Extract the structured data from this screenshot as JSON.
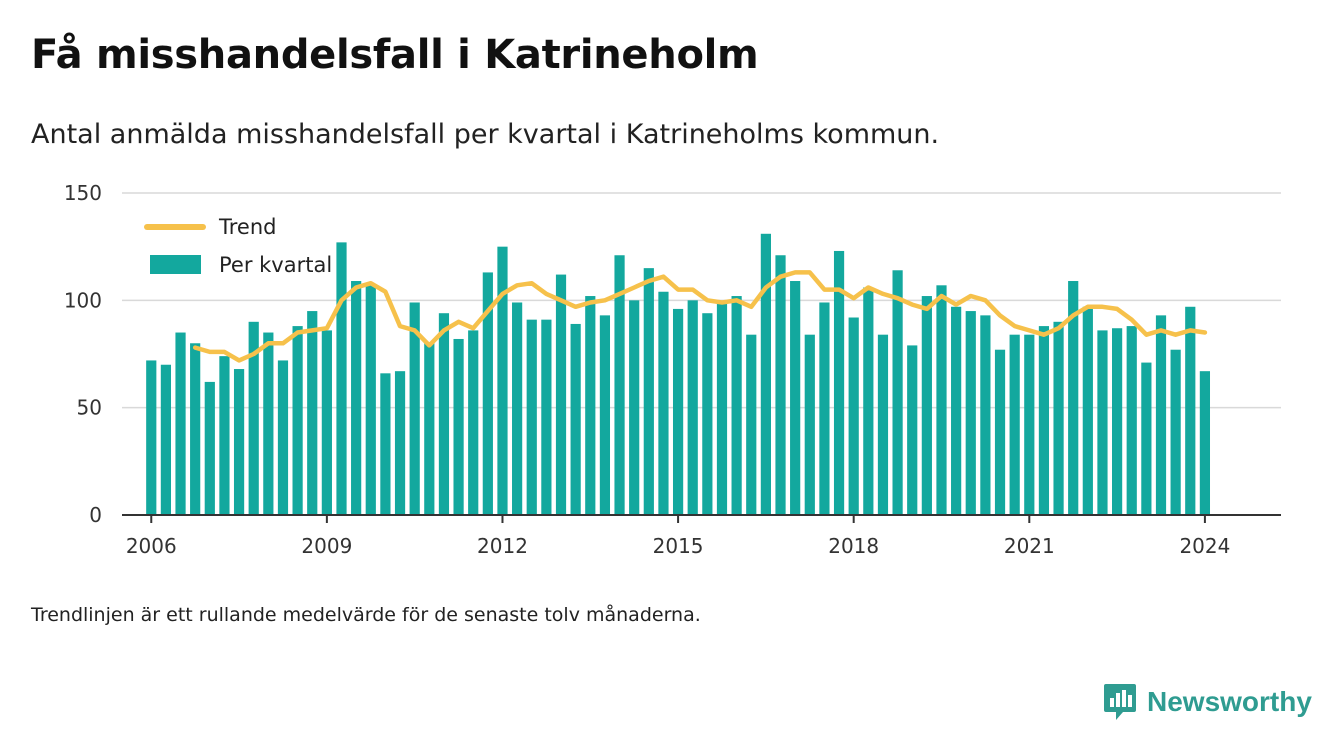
{
  "header": {
    "title": "Få misshandelsfall i Katrineholm",
    "subtitle": "Antal anmälda misshandelsfall per kvartal i Katrineholms kommun."
  },
  "footer": {
    "note": "Trendlinjen är ett rullande medelvärde för de senaste tolv månaderna.",
    "brand": "Newsworthy"
  },
  "colors": {
    "bar": "#13a89e",
    "trend": "#f6c14b",
    "grid": "#d9d9d9",
    "brand": "#2f9c91"
  },
  "chart_data": {
    "type": "bar",
    "title": "Få misshandelsfall i Katrineholm",
    "ylim": [
      0,
      150
    ],
    "yticks": [
      0,
      50,
      100,
      150
    ],
    "xlim": [
      2005.5,
      2025.3
    ],
    "xticks": [
      2006,
      2009,
      2012,
      2015,
      2018,
      2021,
      2024
    ],
    "xtick_labels": [
      "2006",
      "2009",
      "2012",
      "2015",
      "2018",
      "2021",
      "2024"
    ],
    "grid": true,
    "legend_position": "top-left",
    "series": [
      {
        "name": "Trend",
        "type": "line",
        "x": [
          2006.75,
          2007.0,
          2007.25,
          2007.5,
          2007.75,
          2008.0,
          2008.25,
          2008.5,
          2008.75,
          2009.0,
          2009.25,
          2009.5,
          2009.75,
          2010.0,
          2010.25,
          2010.5,
          2010.75,
          2011.0,
          2011.25,
          2011.5,
          2011.75,
          2012.0,
          2012.25,
          2012.5,
          2012.75,
          2013.0,
          2013.25,
          2013.5,
          2013.75,
          2014.0,
          2014.25,
          2014.5,
          2014.75,
          2015.0,
          2015.25,
          2015.5,
          2015.75,
          2016.0,
          2016.25,
          2016.5,
          2016.75,
          2017.0,
          2017.25,
          2017.5,
          2017.75,
          2018.0,
          2018.25,
          2018.5,
          2018.75,
          2019.0,
          2019.25,
          2019.5,
          2019.75,
          2020.0,
          2020.25,
          2020.5,
          2020.75,
          2021.0,
          2021.25,
          2021.5,
          2021.75,
          2022.0,
          2022.25,
          2022.5,
          2022.75,
          2023.0,
          2023.25,
          2023.5,
          2023.75,
          2024.0
        ],
        "values": [
          78,
          76,
          76,
          72,
          75,
          80,
          80,
          85,
          86,
          87,
          100,
          106,
          108,
          104,
          88,
          86,
          79,
          86,
          90,
          87,
          95,
          103,
          107,
          108,
          103,
          100,
          97,
          99,
          100,
          103,
          106,
          109,
          111,
          105,
          105,
          100,
          99,
          100,
          97,
          106,
          111,
          113,
          113,
          105,
          105,
          101,
          106,
          103,
          101,
          98,
          96,
          102,
          98,
          102,
          100,
          93,
          88,
          86,
          84,
          87,
          93,
          97,
          97,
          96,
          91,
          84,
          86,
          84,
          86,
          85
        ]
      },
      {
        "name": "Per kvartal",
        "type": "bar",
        "x": [
          2006.0,
          2006.25,
          2006.5,
          2006.75,
          2007.0,
          2007.25,
          2007.5,
          2007.75,
          2008.0,
          2008.25,
          2008.5,
          2008.75,
          2009.0,
          2009.25,
          2009.5,
          2009.75,
          2010.0,
          2010.25,
          2010.5,
          2010.75,
          2011.0,
          2011.25,
          2011.5,
          2011.75,
          2012.0,
          2012.25,
          2012.5,
          2012.75,
          2013.0,
          2013.25,
          2013.5,
          2013.75,
          2014.0,
          2014.25,
          2014.5,
          2014.75,
          2015.0,
          2015.25,
          2015.5,
          2015.75,
          2016.0,
          2016.25,
          2016.5,
          2016.75,
          2017.0,
          2017.25,
          2017.5,
          2017.75,
          2018.0,
          2018.25,
          2018.5,
          2018.75,
          2019.0,
          2019.25,
          2019.5,
          2019.75,
          2020.0,
          2020.25,
          2020.5,
          2020.75,
          2021.0,
          2021.25,
          2021.5,
          2021.75,
          2022.0,
          2022.25,
          2022.5,
          2022.75,
          2023.0,
          2023.25,
          2023.5,
          2023.75,
          2024.0
        ],
        "values": [
          72,
          70,
          85,
          80,
          62,
          74,
          68,
          90,
          85,
          72,
          88,
          95,
          86,
          127,
          109,
          107,
          66,
          67,
          99,
          80,
          94,
          82,
          86,
          113,
          125,
          99,
          91,
          91,
          112,
          89,
          102,
          93,
          121,
          100,
          115,
          104,
          96,
          100,
          94,
          99,
          102,
          84,
          131,
          121,
          109,
          84,
          99,
          123,
          92,
          106,
          84,
          114,
          79,
          102,
          107,
          97,
          95,
          93,
          77,
          84,
          84,
          88,
          90,
          109,
          97,
          86,
          87,
          88,
          71,
          93,
          77,
          97,
          67
        ]
      }
    ]
  }
}
